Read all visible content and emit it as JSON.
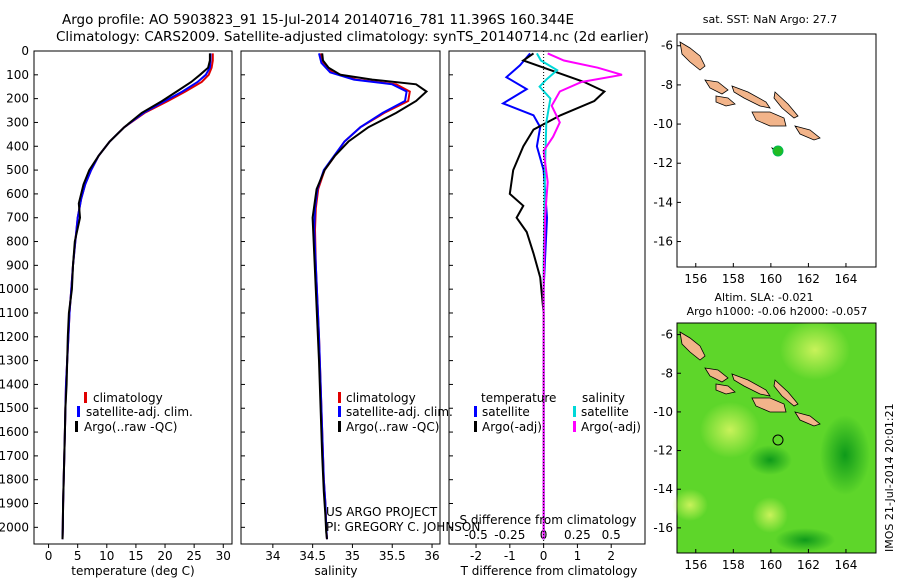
{
  "header": {
    "line1": "Argo profile: AO 5903823_91 15-Jul-2014 20140716_781 11.396S 160.344E",
    "line2": "Climatology: CARS2009. Satellite-adjusted climatology: synTS_20140714.nc (2d earlier)"
  },
  "colors": {
    "climatology": "#e00000",
    "satellite": "#0000ff",
    "argo": "#000000",
    "sat_salinity": "#00d8d8",
    "argo_salinity": "#ff00ff",
    "land": "#f2b48a",
    "float_marker": "#22bb22"
  },
  "panels": {
    "temperature": {
      "xlabel": "temperature (deg C)",
      "xticks": [
        "0",
        "5",
        "10",
        "15",
        "20",
        "25",
        "30"
      ],
      "legend": [
        "climatology",
        "satellite-adj. clim.",
        "Argo(..raw -QC)"
      ]
    },
    "salinity": {
      "xlabel": "salinity",
      "xticks": [
        "34",
        "34.5",
        "35",
        "35.5",
        "36"
      ],
      "legend": [
        "climatology",
        "satellite-adj. clim.",
        "Argo(..raw -QC)"
      ],
      "note1": "US ARGO PROJECT",
      "note2": "PI: GREGORY C. JOHNSON"
    },
    "difference": {
      "top_label": "S difference from climatology",
      "top_ticks": [
        "-0.5",
        "-0.25",
        "0",
        "0.25",
        "0.5"
      ],
      "xlabel": "T difference from climatology",
      "xticks": [
        "-2",
        "-1",
        "0",
        "1",
        "2"
      ],
      "legend_temp_title": "temperature",
      "legend_sal_title": "salinity",
      "legend_temp": [
        "satellite",
        "Argo(-adj)"
      ],
      "legend_sal": [
        "satellite",
        "Argo(-adj)"
      ]
    },
    "depth_ticks": [
      "0",
      "100",
      "200",
      "300",
      "400",
      "500",
      "600",
      "700",
      "800",
      "900",
      "1000",
      "1100",
      "1200",
      "1300",
      "1400",
      "1500",
      "1600",
      "1700",
      "1800",
      "1900",
      "2000"
    ],
    "map_top": {
      "title": "sat. SST: NaN Argo: 27.7",
      "xticks": [
        "156",
        "158",
        "160",
        "162",
        "164"
      ],
      "yticks": [
        "-6",
        "-8",
        "-10",
        "-12",
        "-14",
        "-16"
      ]
    },
    "map_bottom": {
      "title1": "Altim. SLA: -0.021",
      "title2": "Argo h1000: -0.06 h2000: -0.057",
      "xticks": [
        "156",
        "158",
        "160",
        "162",
        "164"
      ],
      "yticks": [
        "-6",
        "-8",
        "-10",
        "-12",
        "-14",
        "-16"
      ]
    },
    "stamp": "IMOS 21-Jul-2014 20:01:21"
  },
  "chart_data": [
    {
      "type": "line",
      "xlabel": "temperature (deg C)",
      "ylabel": "",
      "xlim": [
        -2.5,
        31.5
      ],
      "ylim": [
        2070,
        0
      ],
      "series": [
        {
          "name": "climatology",
          "color": "#e00000",
          "x": [
            28.2,
            28.2,
            28.0,
            27.5,
            26.3,
            23.5,
            20.5,
            16.5,
            13.0,
            10.5,
            8.6,
            7.3,
            6.3,
            5.6,
            5.0,
            4.6,
            4.2,
            3.9,
            3.6,
            3.4,
            3.2,
            3.0,
            2.9,
            2.8,
            2.7,
            2.6,
            2.5,
            2.45,
            2.4
          ],
          "y": [
            10,
            40,
            70,
            100,
            130,
            170,
            210,
            260,
            320,
            380,
            440,
            500,
            560,
            620,
            700,
            800,
            900,
            1000,
            1100,
            1200,
            1300,
            1400,
            1500,
            1600,
            1700,
            1800,
            1900,
            2000,
            2050
          ]
        },
        {
          "name": "satellite-adj. clim.",
          "color": "#0000ff",
          "x": [
            27.8,
            27.8,
            27.7,
            27.0,
            25.6,
            23.0,
            20.0,
            16.3,
            13.0,
            10.5,
            8.6,
            7.3,
            6.3,
            5.6,
            5.0,
            4.6,
            4.2,
            3.9,
            3.6,
            3.4,
            3.2,
            3.0,
            2.9,
            2.8,
            2.7,
            2.6,
            2.5,
            2.45,
            2.4
          ],
          "y": [
            10,
            40,
            70,
            100,
            130,
            170,
            210,
            260,
            320,
            380,
            440,
            500,
            560,
            620,
            700,
            800,
            900,
            1000,
            1100,
            1200,
            1300,
            1400,
            1500,
            1600,
            1700,
            1800,
            1900,
            2000,
            2050
          ]
        },
        {
          "name": "Argo(..raw -QC)",
          "color": "#000000",
          "x": [
            27.7,
            27.7,
            27.4,
            26.0,
            24.5,
            22.0,
            19.5,
            16.0,
            13.0,
            10.5,
            8.6,
            7.0,
            6.0,
            5.2,
            5.4,
            4.5,
            4.2,
            4.0,
            3.5,
            3.3,
            3.2,
            3.1,
            2.9,
            2.8,
            2.7,
            2.6,
            2.5,
            2.45,
            2.4
          ],
          "y": [
            10,
            40,
            70,
            100,
            130,
            170,
            210,
            260,
            320,
            380,
            440,
            500,
            560,
            640,
            700,
            800,
            900,
            1000,
            1100,
            1200,
            1300,
            1400,
            1500,
            1600,
            1700,
            1800,
            1900,
            2000,
            2050
          ]
        }
      ]
    },
    {
      "type": "line",
      "xlabel": "salinity",
      "ylabel": "",
      "xlim": [
        33.6,
        36.1
      ],
      "ylim": [
        2070,
        0
      ],
      "series": [
        {
          "name": "climatology",
          "color": "#e00000",
          "x": [
            34.6,
            34.63,
            34.75,
            35.05,
            35.55,
            35.72,
            35.7,
            35.4,
            35.1,
            34.9,
            34.78,
            34.65,
            34.57,
            34.54,
            34.53,
            34.54,
            34.56,
            34.58,
            34.6,
            34.62,
            34.64,
            34.66,
            34.67,
            34.68
          ],
          "y": [
            10,
            50,
            90,
            120,
            140,
            170,
            210,
            260,
            320,
            380,
            440,
            500,
            580,
            660,
            750,
            900,
            1050,
            1200,
            1400,
            1600,
            1800,
            1900,
            2000,
            2050
          ]
        },
        {
          "name": "satellite-adj. clim.",
          "color": "#0000ff",
          "x": [
            34.58,
            34.61,
            34.72,
            35.02,
            35.5,
            35.68,
            35.66,
            35.38,
            35.1,
            34.9,
            34.77,
            34.64,
            34.56,
            34.53,
            34.52,
            34.54,
            34.56,
            34.58,
            34.6,
            34.62,
            34.64,
            34.66,
            34.67,
            34.68
          ],
          "y": [
            10,
            50,
            90,
            120,
            140,
            170,
            210,
            260,
            320,
            380,
            440,
            500,
            580,
            660,
            750,
            900,
            1050,
            1200,
            1400,
            1600,
            1800,
            1900,
            2000,
            2050
          ]
        },
        {
          "name": "Argo(..raw -QC)",
          "color": "#000000",
          "x": [
            34.62,
            34.63,
            34.7,
            34.85,
            35.25,
            35.8,
            35.93,
            35.8,
            35.55,
            35.2,
            34.95,
            34.78,
            34.65,
            34.55,
            34.5,
            34.52,
            34.54,
            34.56,
            34.58,
            34.6,
            34.62,
            34.64,
            34.66,
            34.67,
            34.68
          ],
          "y": [
            10,
            40,
            70,
            100,
            120,
            140,
            170,
            210,
            260,
            320,
            380,
            440,
            500,
            580,
            700,
            850,
            1000,
            1150,
            1300,
            1500,
            1700,
            1850,
            1950,
            2020,
            2050
          ]
        }
      ]
    },
    {
      "type": "line",
      "xlabel": "T difference from climatology",
      "x2label": "S difference from climatology",
      "ylabel": "",
      "xlim": [
        -2.8,
        3.0
      ],
      "x2lim": [
        -0.7,
        0.75
      ],
      "ylim": [
        2070,
        0
      ],
      "series": [
        {
          "name": "satellite",
          "group": "temperature",
          "color": "#0000ff",
          "axis": "x",
          "x": [
            -0.4,
            -0.7,
            -1.1,
            -0.5,
            -1.2,
            -0.3,
            -0.1,
            -0.2,
            0,
            0.1,
            0,
            0,
            0,
            0
          ],
          "y": [
            10,
            60,
            110,
            160,
            220,
            270,
            320,
            400,
            500,
            700,
            1000,
            1400,
            1800,
            2050
          ]
        },
        {
          "name": "Argo(-adj)",
          "group": "temperature",
          "color": "#000000",
          "axis": "x",
          "x": [
            -0.3,
            -0.6,
            0.2,
            1.2,
            1.8,
            1.5,
            0.5,
            -0.3,
            -0.6,
            -0.9,
            -1.0,
            -0.6,
            -0.8,
            -0.5,
            -0.3,
            -0.1,
            0,
            0,
            0,
            0
          ],
          "y": [
            10,
            40,
            80,
            130,
            170,
            210,
            270,
            330,
            400,
            500,
            600,
            650,
            700,
            760,
            850,
            950,
            1100,
            1400,
            1800,
            2050
          ]
        },
        {
          "name": "satellite",
          "group": "salinity",
          "color": "#00d8d8",
          "axis": "x2",
          "x": [
            -0.05,
            -0.02,
            0.1,
            0.02,
            -0.03,
            0.05,
            0.02,
            0.01,
            0,
            0,
            0
          ],
          "y": [
            10,
            40,
            80,
            120,
            150,
            200,
            300,
            500,
            900,
            1500,
            2050
          ]
        },
        {
          "name": "Argo(-adj)",
          "group": "salinity",
          "color": "#ff00ff",
          "axis": "x2",
          "x": [
            0.03,
            0.15,
            0.4,
            0.58,
            0.28,
            0.12,
            0.06,
            0.12,
            0.07,
            0,
            0.03,
            0.01,
            0,
            0
          ],
          "y": [
            10,
            40,
            70,
            100,
            130,
            170,
            230,
            300,
            360,
            420,
            550,
            700,
            1000,
            2050
          ]
        }
      ]
    }
  ]
}
